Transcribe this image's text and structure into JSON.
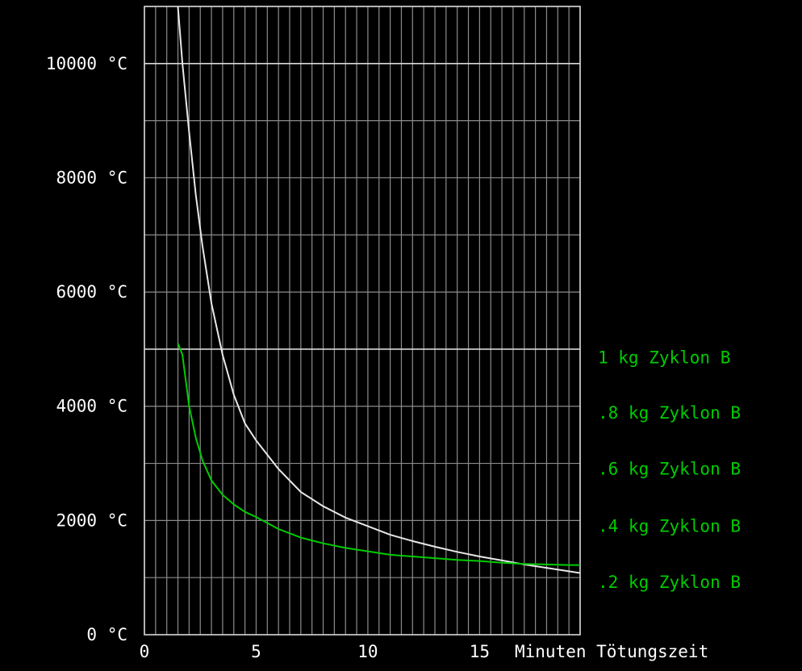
{
  "chart_data": {
    "type": "line",
    "xlabel": "Minuten Tötungszeit",
    "xlim": [
      0,
      19.5
    ],
    "ylim": [
      0,
      11000
    ],
    "x_ticks": [
      {
        "value": 0,
        "label": "0"
      },
      {
        "value": 5,
        "label": "5"
      },
      {
        "value": 10,
        "label": "10"
      },
      {
        "value": 15,
        "label": "15"
      }
    ],
    "y_ticks": [
      {
        "value": 0,
        "label": "0 °C"
      },
      {
        "value": 2000,
        "label": "2000 °C"
      },
      {
        "value": 4000,
        "label": "4000 °C"
      },
      {
        "value": 6000,
        "label": "6000 °C"
      },
      {
        "value": 8000,
        "label": "8000 °C"
      },
      {
        "value": 10000,
        "label": "10000 °C"
      }
    ],
    "grid": true,
    "x_grid_step": 0.5,
    "y_grid_step": 1000,
    "highlight_y_gridlines": [
      5000,
      10000
    ],
    "legend_labels": [
      {
        "text": "1 kg Zyklon B",
        "y": 4850
      },
      {
        "text": ".8 kg Zyklon B",
        "y": 3880
      },
      {
        "text": ".6 kg Zyklon B",
        "y": 2900
      },
      {
        "text": ".4 kg Zyklon B",
        "y": 1900
      },
      {
        "text": ".2 kg Zyklon B",
        "y": 920
      }
    ],
    "series": [
      {
        "color": "#e8e8e8",
        "x": [
          1.5,
          1.7,
          2.0,
          2.3,
          2.6,
          3.0,
          3.5,
          4.0,
          4.5,
          5.0,
          6.0,
          7.0,
          8.0,
          9.0,
          10.0,
          11.0,
          12.0,
          13.0,
          14.0,
          15.0,
          16.0,
          17.0,
          18.0,
          19.0,
          19.5
        ],
        "values": [
          11000,
          10000,
          8800,
          7700,
          6800,
          5800,
          4900,
          4200,
          3700,
          3400,
          2900,
          2500,
          2250,
          2050,
          1900,
          1750,
          1640,
          1540,
          1450,
          1370,
          1300,
          1230,
          1170,
          1110,
          1080
        ]
      },
      {
        "color": "#00cc00",
        "x": [
          1.5,
          1.7,
          2.0,
          2.3,
          2.6,
          3.0,
          3.5,
          4.0,
          4.5,
          5.0,
          6.0,
          7.0,
          8.0,
          9.0,
          10.0,
          11.0,
          12.0,
          13.0,
          14.0,
          15.0,
          16.0,
          17.0,
          18.0,
          19.0,
          19.5
        ],
        "values": [
          5100,
          4900,
          4000,
          3450,
          3050,
          2700,
          2450,
          2280,
          2150,
          2060,
          1850,
          1700,
          1600,
          1520,
          1460,
          1400,
          1370,
          1340,
          1310,
          1290,
          1260,
          1240,
          1230,
          1220,
          1220
        ]
      }
    ]
  },
  "colors": {
    "background": "#000000",
    "grid": "#8c8c8c",
    "highlight_grid": "#d8d8d8",
    "axis_text": "#ffffff",
    "legend_text": "#00cc00"
  }
}
